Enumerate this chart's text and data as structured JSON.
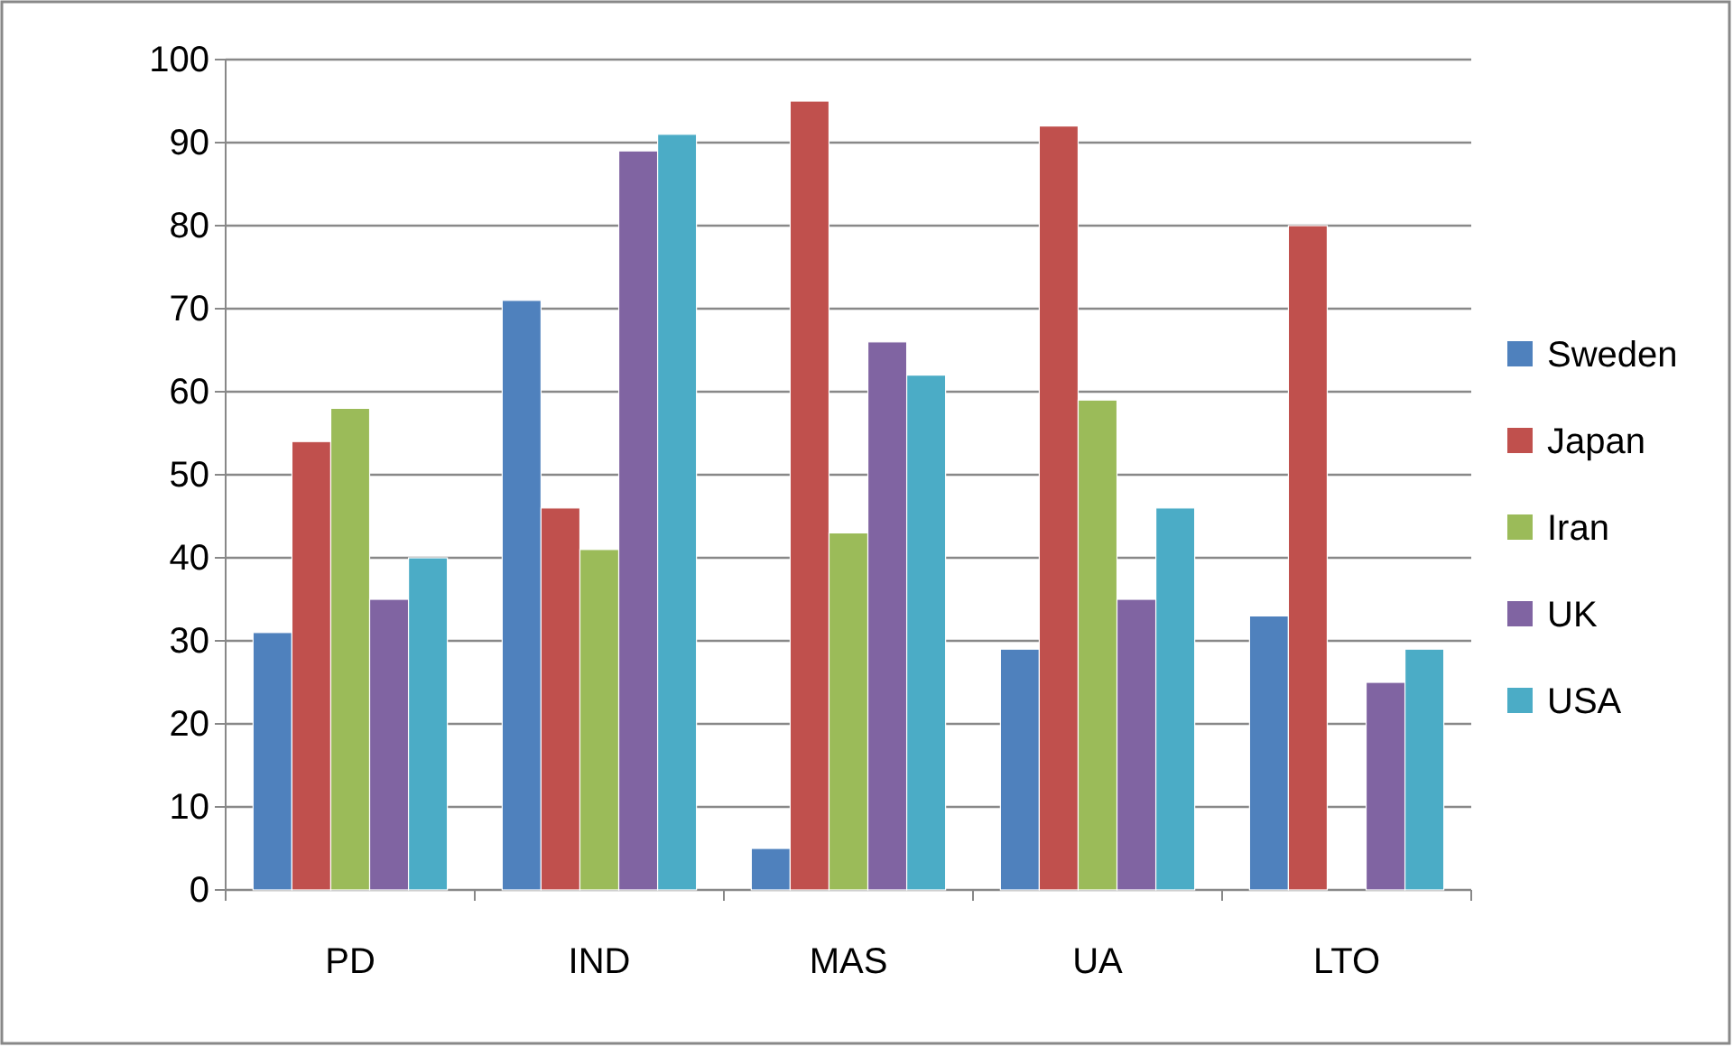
{
  "chart_data": {
    "type": "bar",
    "categories": [
      "PD",
      "IND",
      "MAS",
      "UA",
      "LTO"
    ],
    "series": [
      {
        "name": "Sweden",
        "color": "#4f81bd",
        "values": [
          31,
          71,
          5,
          29,
          33
        ]
      },
      {
        "name": "Japan",
        "color": "#c0504d",
        "values": [
          54,
          46,
          95,
          92,
          80
        ]
      },
      {
        "name": "Iran",
        "color": "#9bbb59",
        "values": [
          58,
          41,
          43,
          59,
          null
        ]
      },
      {
        "name": "UK",
        "color": "#8064a2",
        "values": [
          35,
          89,
          66,
          35,
          25
        ]
      },
      {
        "name": "USA",
        "color": "#4bacc6",
        "values": [
          40,
          91,
          62,
          46,
          29
        ]
      }
    ],
    "ylim": [
      0,
      100
    ],
    "yticks": [
      0,
      10,
      20,
      30,
      40,
      50,
      60,
      70,
      80,
      90,
      100
    ],
    "grid": "y",
    "legend": "right"
  }
}
